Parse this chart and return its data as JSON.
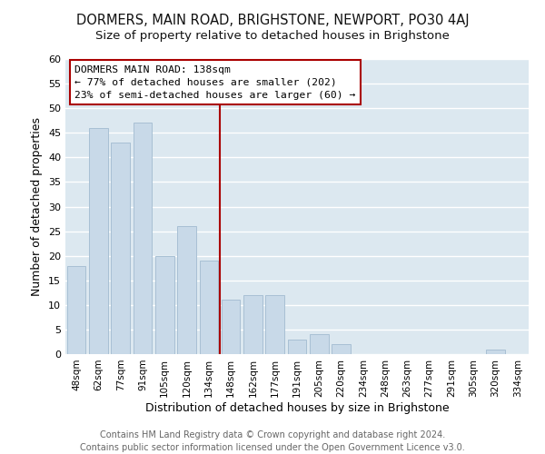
{
  "title": "DORMERS, MAIN ROAD, BRIGHSTONE, NEWPORT, PO30 4AJ",
  "subtitle": "Size of property relative to detached houses in Brighstone",
  "xlabel": "Distribution of detached houses by size in Brighstone",
  "ylabel": "Number of detached properties",
  "bar_labels": [
    "48sqm",
    "62sqm",
    "77sqm",
    "91sqm",
    "105sqm",
    "120sqm",
    "134sqm",
    "148sqm",
    "162sqm",
    "177sqm",
    "191sqm",
    "205sqm",
    "220sqm",
    "234sqm",
    "248sqm",
    "263sqm",
    "277sqm",
    "291sqm",
    "305sqm",
    "320sqm",
    "334sqm"
  ],
  "bar_values": [
    18,
    46,
    43,
    47,
    20,
    26,
    19,
    11,
    12,
    12,
    3,
    4,
    2,
    0,
    0,
    0,
    0,
    0,
    0,
    1,
    0
  ],
  "bar_color": "#c8d9e8",
  "bar_edge_color": "#a8c0d4",
  "vline_x_index": 6,
  "vline_color": "#aa0000",
  "ylim": [
    0,
    60
  ],
  "yticks": [
    0,
    5,
    10,
    15,
    20,
    25,
    30,
    35,
    40,
    45,
    50,
    55,
    60
  ],
  "annotation_title": "DORMERS MAIN ROAD: 138sqm",
  "annotation_line1": "← 77% of detached houses are smaller (202)",
  "annotation_line2": "23% of semi-detached houses are larger (60) →",
  "annotation_box_color": "#ffffff",
  "annotation_box_edge": "#aa0000",
  "footer_line1": "Contains HM Land Registry data © Crown copyright and database right 2024.",
  "footer_line2": "Contains public sector information licensed under the Open Government Licence v3.0.",
  "background_color": "#ffffff",
  "plot_bg_color": "#dce8f0",
  "grid_color": "#ffffff",
  "title_fontsize": 10.5,
  "subtitle_fontsize": 9.5,
  "footer_fontsize": 7
}
